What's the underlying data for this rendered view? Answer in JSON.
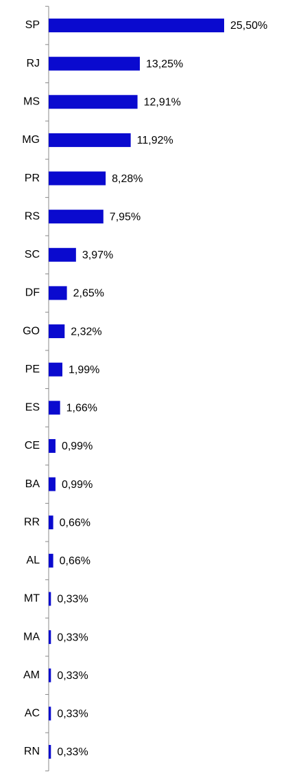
{
  "chart_data": {
    "type": "bar",
    "orientation": "horizontal",
    "color": "#0a0acf",
    "categories": [
      "SP",
      "RJ",
      "MS",
      "MG",
      "PR",
      "RS",
      "SC",
      "DF",
      "GO",
      "PE",
      "ES",
      "CE",
      "BA",
      "RR",
      "AL",
      "MT",
      "MA",
      "AM",
      "AC",
      "RN"
    ],
    "values": [
      25.5,
      13.25,
      12.91,
      11.92,
      8.28,
      7.95,
      3.97,
      2.65,
      2.32,
      1.99,
      1.66,
      0.99,
      0.99,
      0.66,
      0.66,
      0.33,
      0.33,
      0.33,
      0.33,
      0.33
    ],
    "value_labels": [
      "25,50%",
      "13,25%",
      "12,91%",
      "11,92%",
      "8,28%",
      "7,95%",
      "3,97%",
      "2,65%",
      "2,32%",
      "1,99%",
      "1,66%",
      "0,99%",
      "0,99%",
      "0,66%",
      "0,66%",
      "0,33%",
      "0,33%",
      "0,33%",
      "0,33%",
      "0,33%"
    ]
  }
}
